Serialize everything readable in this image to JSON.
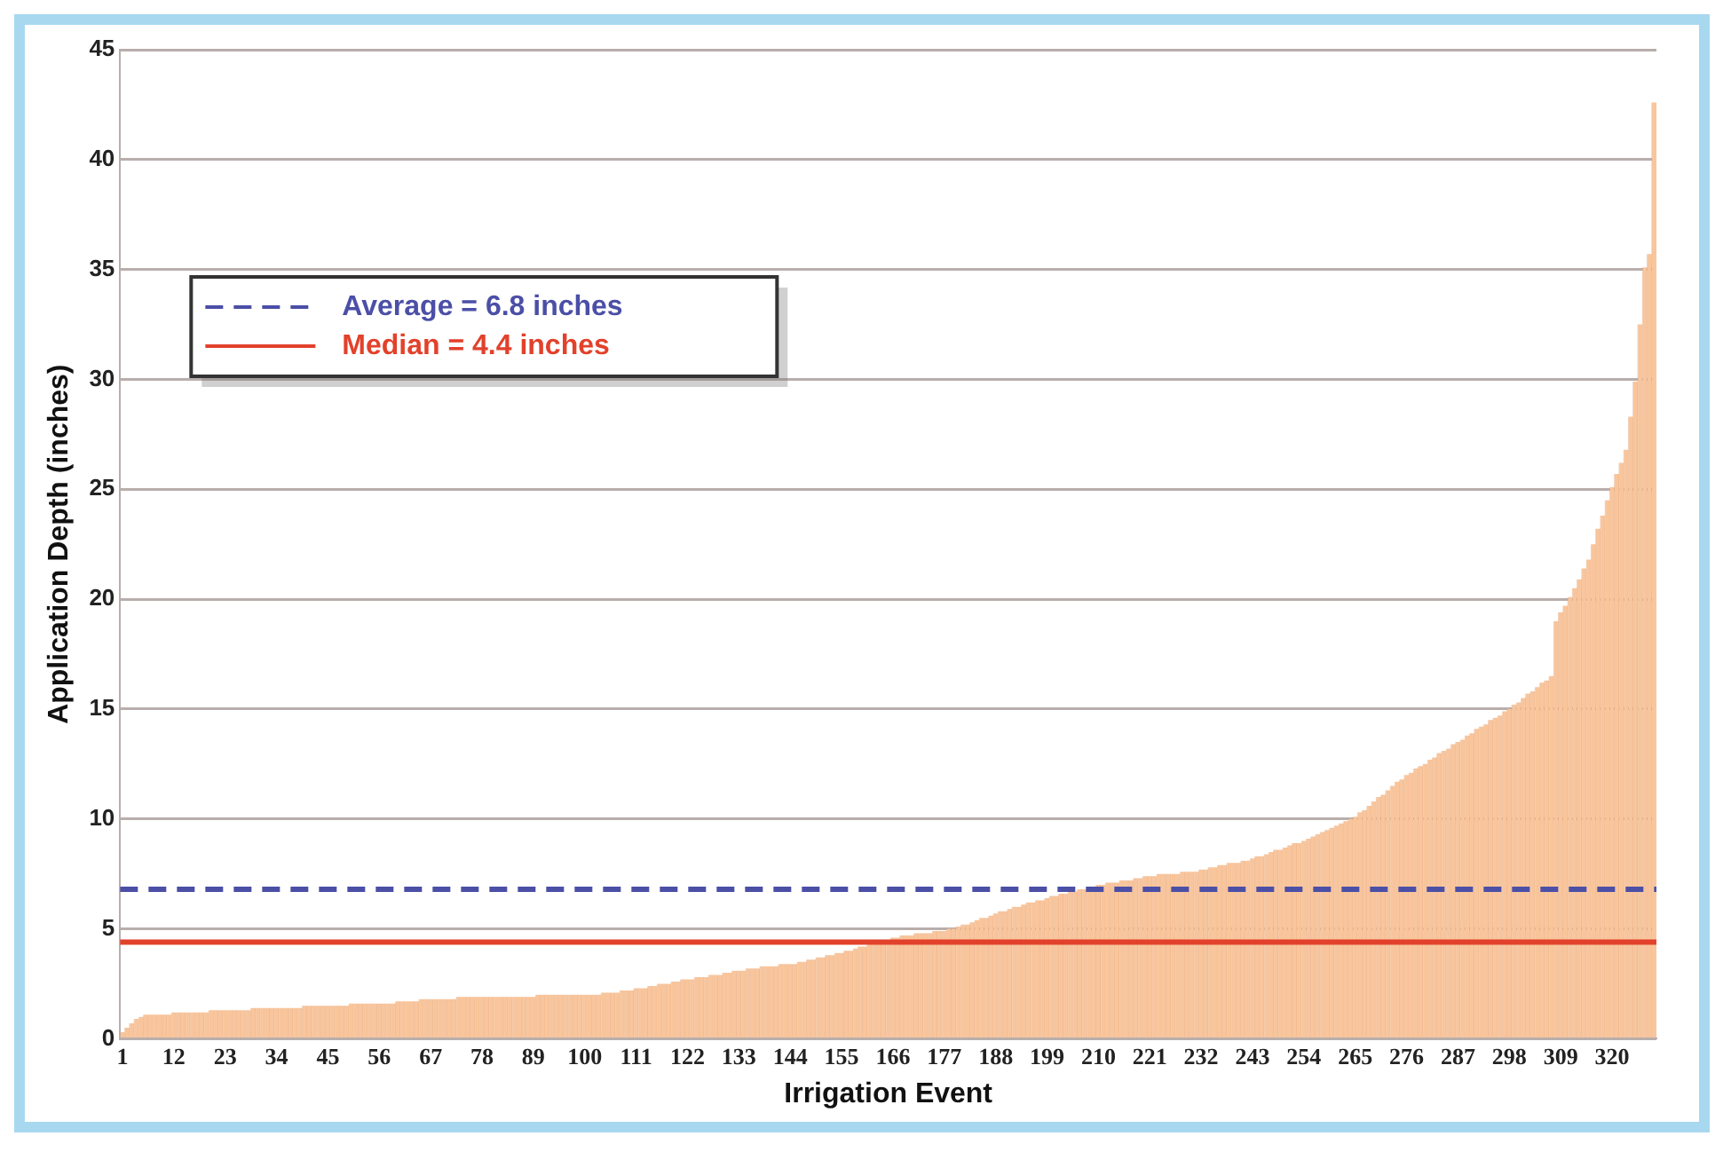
{
  "chart_data": {
    "type": "bar",
    "xlabel": "Irrigation Event",
    "ylabel": "Application Depth (inches)",
    "categories": [
      "1",
      null,
      null,
      null,
      null,
      null,
      null,
      null,
      null,
      null,
      null,
      "12",
      null,
      null,
      null,
      null,
      null,
      null,
      null,
      null,
      null,
      null,
      "23",
      null,
      null,
      null,
      null,
      null,
      null,
      null,
      null,
      null,
      null,
      "34",
      null,
      null,
      null,
      null,
      null,
      null,
      null,
      null,
      null,
      null,
      "45",
      null,
      null,
      null,
      null,
      null,
      null,
      null,
      null,
      null,
      null,
      "56",
      null,
      null,
      null,
      null,
      null,
      null,
      null,
      null,
      null,
      null,
      "67",
      null,
      null,
      null,
      null,
      null,
      null,
      null,
      null,
      null,
      null,
      "78",
      null,
      null,
      null,
      null,
      null,
      null,
      null,
      null,
      null,
      null,
      "89",
      null,
      null,
      null,
      null,
      null,
      null,
      null,
      null,
      null,
      null,
      "100",
      null,
      null,
      null,
      null,
      null,
      null,
      null,
      null,
      null,
      null,
      "111",
      null,
      null,
      null,
      null,
      null,
      null,
      null,
      null,
      null,
      null,
      "122",
      null,
      null,
      null,
      null,
      null,
      null,
      null,
      null,
      null,
      null,
      "133",
      null,
      null,
      null,
      null,
      null,
      null,
      null,
      null,
      null,
      null,
      "144",
      null,
      null,
      null,
      null,
      null,
      null,
      null,
      null,
      null,
      null,
      "155",
      null,
      null,
      null,
      null,
      null,
      null,
      null,
      null,
      null,
      null,
      "166",
      null,
      null,
      null,
      null,
      null,
      null,
      null,
      null,
      null,
      null,
      "177",
      null,
      null,
      null,
      null,
      null,
      null,
      null,
      null,
      null,
      null,
      "188",
      null,
      null,
      null,
      null,
      null,
      null,
      null,
      null,
      null,
      null,
      "199",
      null,
      null,
      null,
      null,
      null,
      null,
      null,
      null,
      null,
      null,
      "210",
      null,
      null,
      null,
      null,
      null,
      null,
      null,
      null,
      null,
      null,
      "221",
      null,
      null,
      null,
      null,
      null,
      null,
      null,
      null,
      null,
      null,
      "232",
      null,
      null,
      null,
      null,
      null,
      null,
      null,
      null,
      null,
      null,
      "243",
      null,
      null,
      null,
      null,
      null,
      null,
      null,
      null,
      null,
      null,
      "254",
      null,
      null,
      null,
      null,
      null,
      null,
      null,
      null,
      null,
      null,
      "265",
      null,
      null,
      null,
      null,
      null,
      null,
      null,
      null,
      null,
      null,
      "276",
      null,
      null,
      null,
      null,
      null,
      null,
      null,
      null,
      null,
      null,
      "287",
      null,
      null,
      null,
      null,
      null,
      null,
      null,
      null,
      null,
      null,
      "298",
      null,
      null,
      null,
      null,
      null,
      null,
      null,
      null,
      null,
      null,
      "309",
      null,
      null,
      null,
      null,
      null,
      null,
      null,
      null,
      null,
      null,
      "320",
      null,
      null,
      null,
      null,
      null,
      null,
      null,
      null,
      null
    ],
    "values": [
      0.3,
      0.5,
      0.7,
      0.9,
      1.0,
      1.1,
      1.1,
      1.1,
      1.1,
      1.1,
      1.1,
      1.2,
      1.2,
      1.2,
      1.2,
      1.2,
      1.2,
      1.2,
      1.2,
      1.3,
      1.3,
      1.3,
      1.3,
      1.3,
      1.3,
      1.3,
      1.3,
      1.3,
      1.4,
      1.4,
      1.4,
      1.4,
      1.4,
      1.4,
      1.4,
      1.4,
      1.4,
      1.4,
      1.4,
      1.5,
      1.5,
      1.5,
      1.5,
      1.5,
      1.5,
      1.5,
      1.5,
      1.5,
      1.5,
      1.6,
      1.6,
      1.6,
      1.6,
      1.6,
      1.6,
      1.6,
      1.6,
      1.6,
      1.6,
      1.7,
      1.7,
      1.7,
      1.7,
      1.7,
      1.8,
      1.8,
      1.8,
      1.8,
      1.8,
      1.8,
      1.8,
      1.8,
      1.9,
      1.9,
      1.9,
      1.9,
      1.9,
      1.9,
      1.9,
      1.9,
      1.9,
      1.9,
      1.9,
      1.9,
      1.9,
      1.9,
      1.9,
      1.9,
      1.9,
      2.0,
      2.0,
      2.0,
      2.0,
      2.0,
      2.0,
      2.0,
      2.0,
      2.0,
      2.0,
      2.0,
      2.0,
      2.0,
      2.0,
      2.1,
      2.1,
      2.1,
      2.1,
      2.2,
      2.2,
      2.2,
      2.3,
      2.3,
      2.3,
      2.4,
      2.4,
      2.5,
      2.5,
      2.5,
      2.6,
      2.6,
      2.7,
      2.7,
      2.7,
      2.8,
      2.8,
      2.8,
      2.9,
      2.9,
      2.9,
      3.0,
      3.0,
      3.1,
      3.1,
      3.1,
      3.2,
      3.2,
      3.2,
      3.3,
      3.3,
      3.3,
      3.3,
      3.4,
      3.4,
      3.4,
      3.4,
      3.5,
      3.5,
      3.6,
      3.6,
      3.7,
      3.7,
      3.8,
      3.8,
      3.9,
      3.9,
      4.0,
      4.0,
      4.1,
      4.2,
      4.2,
      4.3,
      4.4,
      4.4,
      4.5,
      4.5,
      4.6,
      4.6,
      4.7,
      4.7,
      4.7,
      4.8,
      4.8,
      4.8,
      4.8,
      4.9,
      4.9,
      4.9,
      5.0,
      5.0,
      5.1,
      5.2,
      5.2,
      5.3,
      5.4,
      5.5,
      5.5,
      5.6,
      5.7,
      5.8,
      5.8,
      5.9,
      6.0,
      6.0,
      6.1,
      6.2,
      6.2,
      6.3,
      6.3,
      6.4,
      6.5,
      6.5,
      6.6,
      6.6,
      6.7,
      6.7,
      6.8,
      6.8,
      6.9,
      6.9,
      7.0,
      7.0,
      7.1,
      7.1,
      7.1,
      7.2,
      7.2,
      7.2,
      7.3,
      7.3,
      7.4,
      7.4,
      7.4,
      7.5,
      7.5,
      7.5,
      7.5,
      7.5,
      7.6,
      7.6,
      7.6,
      7.6,
      7.7,
      7.7,
      7.8,
      7.8,
      7.9,
      7.9,
      8.0,
      8.0,
      8.0,
      8.1,
      8.1,
      8.2,
      8.3,
      8.3,
      8.4,
      8.5,
      8.6,
      8.6,
      8.7,
      8.8,
      8.9,
      8.9,
      9.0,
      9.1,
      9.2,
      9.3,
      9.4,
      9.5,
      9.6,
      9.7,
      9.8,
      9.9,
      10.0,
      10.1,
      10.3,
      10.4,
      10.6,
      10.8,
      11.0,
      11.1,
      11.3,
      11.5,
      11.7,
      11.8,
      12.0,
      12.1,
      12.3,
      12.4,
      12.5,
      12.7,
      12.8,
      13.0,
      13.1,
      13.2,
      13.4,
      13.5,
      13.6,
      13.8,
      13.9,
      14.1,
      14.2,
      14.3,
      14.5,
      14.6,
      14.7,
      14.9,
      15.0,
      15.2,
      15.3,
      15.5,
      15.7,
      15.8,
      16.0,
      16.2,
      16.3,
      16.5,
      19.0,
      19.4,
      19.7,
      20.1,
      20.5,
      20.9,
      21.4,
      21.8,
      22.5,
      23.2,
      23.8,
      24.5,
      25.1,
      25.7,
      26.2,
      26.8,
      28.3,
      29.9,
      32.5,
      35.1,
      35.7,
      42.6
    ],
    "color": "#f8c59c",
    "ylim": [
      0,
      45
    ],
    "yticks": [
      0,
      5,
      10,
      15,
      20,
      25,
      30,
      35,
      40,
      45
    ],
    "grid": "y",
    "legend": "top left",
    "ref_lines": [
      {
        "axis": "y",
        "value": 6.8,
        "label": "Average = 6.8 inches",
        "color": "#4b4fa6",
        "line_style": "dashed"
      },
      {
        "axis": "y",
        "value": 4.4,
        "label": "Median = 4.4 inches",
        "color": "#e2412b",
        "line_style": "solid"
      }
    ]
  }
}
